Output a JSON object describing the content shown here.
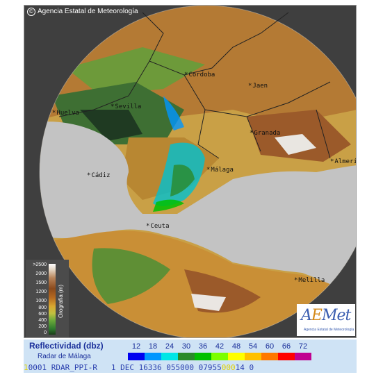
{
  "credit": "Agencia Estatal de Meteorología",
  "cities": [
    {
      "name": "Cordoba",
      "key": "cordoba"
    },
    {
      "name": "Jaen",
      "key": "jaen"
    },
    {
      "name": "Huelva",
      "key": "huelva"
    },
    {
      "name": "Sevilla",
      "key": "sevilla"
    },
    {
      "name": "Granada",
      "key": "granada"
    },
    {
      "name": "Almería",
      "key": "almeria"
    },
    {
      "name": "Málaga",
      "key": "malaga"
    },
    {
      "name": "Cádiz",
      "key": "cadiz"
    },
    {
      "name": "Ceuta",
      "key": "ceuta"
    },
    {
      "name": "Melilla",
      "key": "melilla"
    }
  ],
  "orography_scale": {
    "title": "Orografía (m)",
    "labels": [
      ">2500",
      "2000",
      "1500",
      "1200",
      "1000",
      "800",
      "600",
      "400",
      "200",
      "0"
    ]
  },
  "logo": {
    "name_a": "A",
    "name_e": "E",
    "name_rest": "Met",
    "subtitle": "Agencia Estatal de Meteorología"
  },
  "legend": {
    "title": "Reflectividad (dbz)",
    "subtitle": "Radar de Málaga",
    "ticks": [
      "12",
      "18",
      "24",
      "30",
      "36",
      "42",
      "48",
      "54",
      "60",
      "66",
      "72"
    ],
    "colors": [
      "#0000f0",
      "#0096ff",
      "#00e6e6",
      "#2a8a2a",
      "#00c000",
      "#7cff00",
      "#ffff00",
      "#ffc000",
      "#ff7800",
      "#ff0000",
      "#c00090"
    ]
  },
  "infoline": {
    "prefix": "1",
    "text": "0001 RDAR_PPI-R   1 DEC 16336 055000 07955",
    "suffix": "000",
    "tail": "14 0"
  }
}
